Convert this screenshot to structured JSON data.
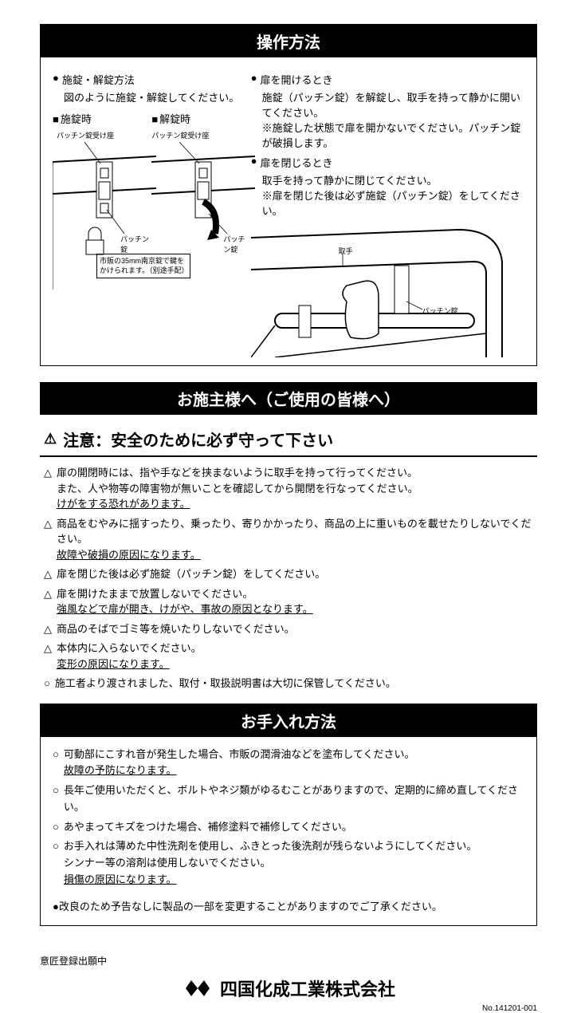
{
  "operation": {
    "title": "操作方法",
    "left": {
      "heading": "施錠・解錠方法",
      "text": "図のように施錠・解錠してください。",
      "lock_heading": "施錠時",
      "unlock_heading": "解錠時",
      "label_receiver": "パッチン錠受け座",
      "label_latch": "パッチン錠",
      "note": "市販の35mm南京錠で鍵をかけられます。（別途手配）"
    },
    "right": {
      "open_heading": "扉を開けるとき",
      "open_text1": "施錠（パッチン錠）を解錠し、取手を持って静かに開いてください。",
      "open_text2": "※施錠した状態で扉を開かないでください。パッチン錠が破損します。",
      "close_heading": "扉を閉じるとき",
      "close_text1": "取手を持って静かに閉じてください。",
      "close_text2": "※扉を閉じた後は必ず施錠（パッチン錠）をしてください。",
      "label_handle": "取手",
      "label_latch": "パッチン錠"
    }
  },
  "owner": {
    "title": "お施主様へ（ご使用の皆様へ）",
    "caution_title": "注意：安全のために必ず守って下さい",
    "items": [
      {
        "mark": "△",
        "lines": [
          "扉の開閉時には、指や手などを挟まないように取手を持って行ってください。",
          "また、人や物等の障害物が無いことを確認してから開閉を行なってください。"
        ],
        "under": "けがをする恐れがあります。"
      },
      {
        "mark": "△",
        "lines": [
          "商品をむやみに揺すったり、乗ったり、寄りかかったり、商品の上に重いものを載せたりしないでください。"
        ],
        "under": "故障や破損の原因になります。"
      },
      {
        "mark": "△",
        "lines": [
          "扉を閉じた後は必ず施錠（パッチン錠）をしてください。"
        ]
      },
      {
        "mark": "△",
        "lines": [
          "扉を開けたままで放置しないでください。"
        ],
        "under": "強風などで扉が開き、けがや、事故の原因となります。"
      },
      {
        "mark": "△",
        "lines": [
          "商品のそばでゴミ等を焼いたりしないでください。"
        ]
      },
      {
        "mark": "△",
        "lines": [
          "本体内に入らないでください。"
        ],
        "under": "変形の原因になります。"
      },
      {
        "mark": "○",
        "lines": [
          "施工者より渡されました、取付・取扱説明書は大切に保管してください。"
        ]
      }
    ]
  },
  "maintenance": {
    "title": "お手入れ方法",
    "items": [
      {
        "mark": "○",
        "text": "可動部にこすれ音が発生した場合、市販の潤滑油などを塗布してください。",
        "under": "故障の予防になります。"
      },
      {
        "mark": "○",
        "text": "長年ご使用いただくと、ボルトやネジ類がゆるむことがありますので、定期的に締め直してください。"
      },
      {
        "mark": "○",
        "text": "あやまってキズをつけた場合、補修塗料で補修してください。"
      },
      {
        "mark": "○",
        "text": "お手入れは薄めた中性洗剤を使用し、ふきとった後洗剤が残らないようにしてください。",
        "extra": "シンナー等の溶剤は使用しないでください。",
        "under": "損傷の原因になります。"
      }
    ],
    "notice": "●改良のため予告なしに製品の一部を変更することがありますのでご了承ください。"
  },
  "footer": {
    "design": "意匠登録出願中",
    "company": "四国化成工業株式会社",
    "docnum": "No.141201-001"
  }
}
